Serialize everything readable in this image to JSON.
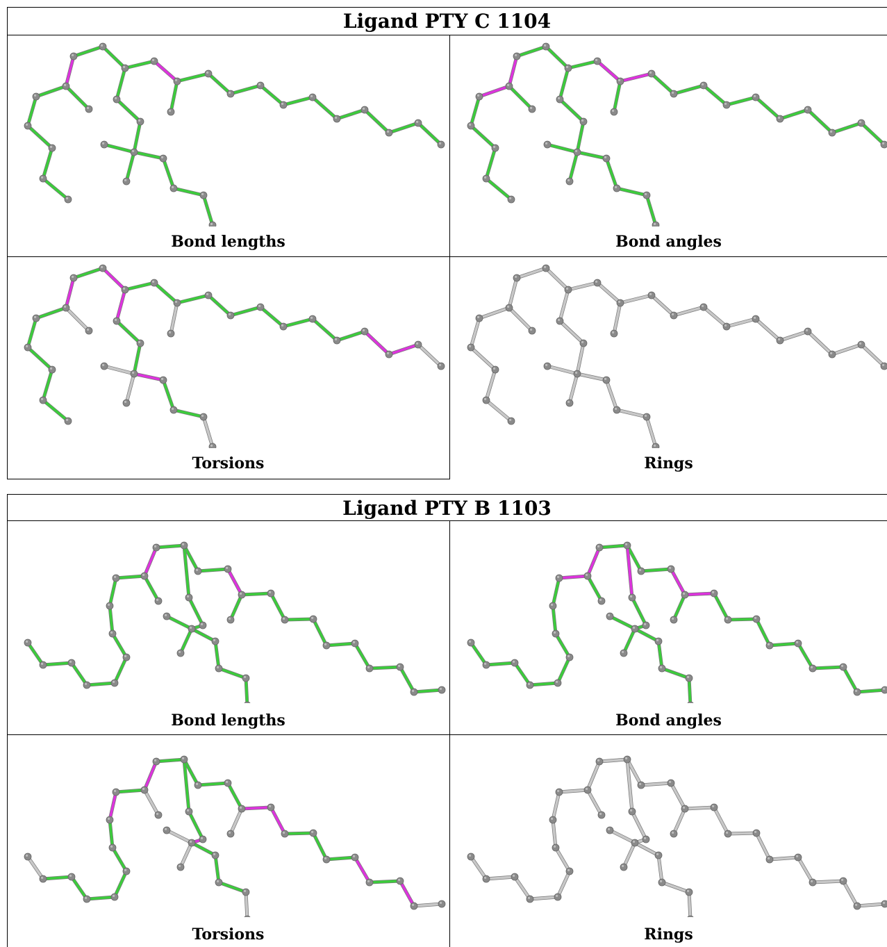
{
  "colors": {
    "ok_bond": "#3ccc3c",
    "outlier_bond": "#dd33dd",
    "neutral_bond": "#c8c8c8",
    "atom": "#8a8a8a"
  },
  "ligands": [
    {
      "title": "Ligand PTY C 1104",
      "panels": [
        {
          "caption": "Bond lengths"
        },
        {
          "caption": "Bond angles"
        },
        {
          "caption": "Torsions"
        },
        {
          "caption": "Rings"
        }
      ]
    },
    {
      "title": "Ligand PTY B 1103",
      "panels": [
        {
          "caption": "Bond lengths"
        },
        {
          "caption": "Bond angles"
        },
        {
          "caption": "Torsions"
        },
        {
          "caption": "Rings"
        }
      ]
    }
  ]
}
